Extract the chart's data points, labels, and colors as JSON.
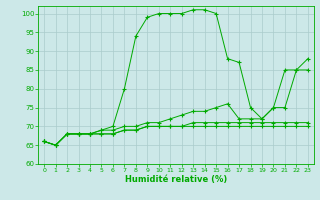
{
  "title": "",
  "xlabel": "Humidité relative (%)",
  "xlim": [
    -0.5,
    23.5
  ],
  "ylim": [
    60,
    102
  ],
  "yticks": [
    60,
    65,
    70,
    75,
    80,
    85,
    90,
    95,
    100
  ],
  "xticks": [
    0,
    1,
    2,
    3,
    4,
    5,
    6,
    7,
    8,
    9,
    10,
    11,
    12,
    13,
    14,
    15,
    16,
    17,
    18,
    19,
    20,
    21,
    22,
    23
  ],
  "bg_color": "#cce8e8",
  "grid_color": "#aacccc",
  "line_color": "#00aa00",
  "series": [
    {
      "x": [
        0,
        1,
        2,
        3,
        4,
        5,
        6,
        7,
        8,
        9,
        10,
        11,
        12,
        13,
        14,
        15,
        16,
        17,
        18,
        19,
        20,
        21,
        22,
        23
      ],
      "y": [
        66,
        65,
        68,
        68,
        68,
        69,
        70,
        80,
        94,
        99,
        100,
        100,
        100,
        101,
        101,
        100,
        88,
        87,
        75,
        72,
        75,
        85,
        85,
        88
      ]
    },
    {
      "x": [
        0,
        1,
        2,
        3,
        4,
        5,
        6,
        7,
        8,
        9,
        10,
        11,
        12,
        13,
        14,
        15,
        16,
        17,
        18,
        19,
        20,
        21,
        22,
        23
      ],
      "y": [
        66,
        65,
        68,
        68,
        68,
        69,
        69,
        70,
        70,
        71,
        71,
        72,
        73,
        74,
        74,
        75,
        76,
        72,
        72,
        72,
        75,
        75,
        85,
        85
      ]
    },
    {
      "x": [
        0,
        1,
        2,
        3,
        4,
        5,
        6,
        7,
        8,
        9,
        10,
        11,
        12,
        13,
        14,
        15,
        16,
        17,
        18,
        19,
        20,
        21,
        22,
        23
      ],
      "y": [
        66,
        65,
        68,
        68,
        68,
        68,
        68,
        69,
        69,
        70,
        70,
        70,
        70,
        71,
        71,
        71,
        71,
        71,
        71,
        71,
        71,
        71,
        71,
        71
      ]
    },
    {
      "x": [
        0,
        1,
        2,
        3,
        4,
        5,
        6,
        7,
        8,
        9,
        10,
        11,
        12,
        13,
        14,
        15,
        16,
        17,
        18,
        19,
        20,
        21,
        22,
        23
      ],
      "y": [
        66,
        65,
        68,
        68,
        68,
        68,
        68,
        69,
        69,
        70,
        70,
        70,
        70,
        70,
        70,
        70,
        70,
        70,
        70,
        70,
        70,
        70,
        70,
        70
      ]
    }
  ]
}
